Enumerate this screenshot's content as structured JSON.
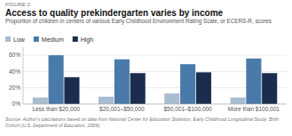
{
  "chart_data": {
    "type": "bar",
    "title": "Access to quality prekindergarten varies by income",
    "subtitle": "Proportion of children in centers of various Early Childhood Environment Rating Scale, or ECERS-R, scores",
    "annotations": [
      "FIGURE 3",
      "Source: Author's calculations based on data from National Center for Education Statistics, Early Childhood Longitudinal Study: Birth Cohort (U.S. Department of Education, 2009)."
    ],
    "categories": [
      "Less than $20,000",
      "$20,001–$50,000",
      "$50,001–$100,000",
      "More than $100,001"
    ],
    "series": [
      {
        "name": "Low",
        "color": "#a8bdd0",
        "values": [
          8,
          9,
          13,
          8
        ]
      },
      {
        "name": "Medium",
        "color": "#4a7aaa",
        "values": [
          60,
          55,
          49,
          56
        ]
      },
      {
        "name": "High",
        "color": "#1a2d4e",
        "values": [
          33,
          38,
          39,
          38
        ]
      }
    ],
    "ylim": [
      0,
      70
    ],
    "yticks": [
      {
        "value": 0,
        "label": "0%"
      },
      {
        "value": 20,
        "label": "20%"
      },
      {
        "value": 40,
        "label": "40%"
      },
      {
        "value": 60,
        "label": "60%"
      }
    ],
    "grid": true,
    "legend": "top"
  }
}
